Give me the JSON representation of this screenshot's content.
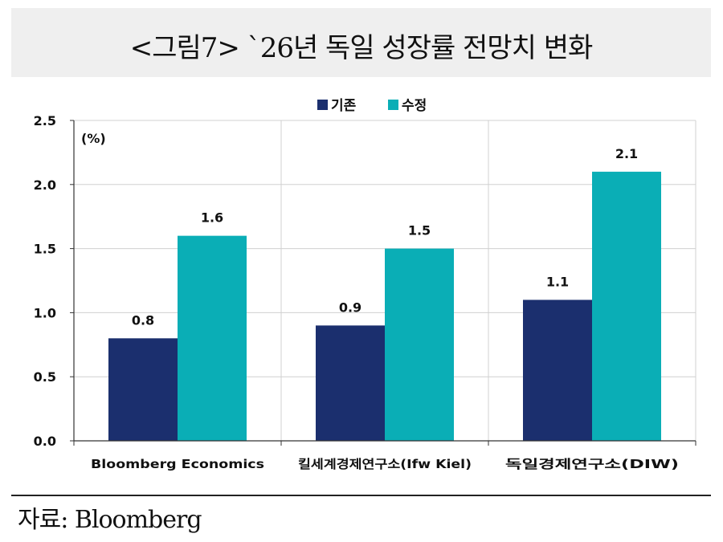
{
  "title": "<그림7> `26년 독일 성장률 전망치 변화",
  "source": "자료: Bloomberg",
  "colors": {
    "base": "#1b2f6e",
    "revised": "#0aaeb6",
    "grid": "#d0d0d0",
    "axis": "#333333"
  },
  "chart_data": {
    "type": "bar",
    "unit": "(%)",
    "categories": [
      "Bloomberg Economics",
      "킬세계경제연구소(Ifw Kiel)",
      "독일경제연구소(DIW)"
    ],
    "series": [
      {
        "name": "기존",
        "values": [
          0.8,
          0.9,
          1.1
        ]
      },
      {
        "name": "수정",
        "values": [
          1.6,
          1.5,
          2.1
        ]
      }
    ],
    "ylim": [
      0,
      2.5
    ],
    "yticks": [
      "0.0",
      "0.5",
      "1.0",
      "1.5",
      "2.0",
      "2.5"
    ],
    "legend_position": "top-center",
    "grid": true
  }
}
